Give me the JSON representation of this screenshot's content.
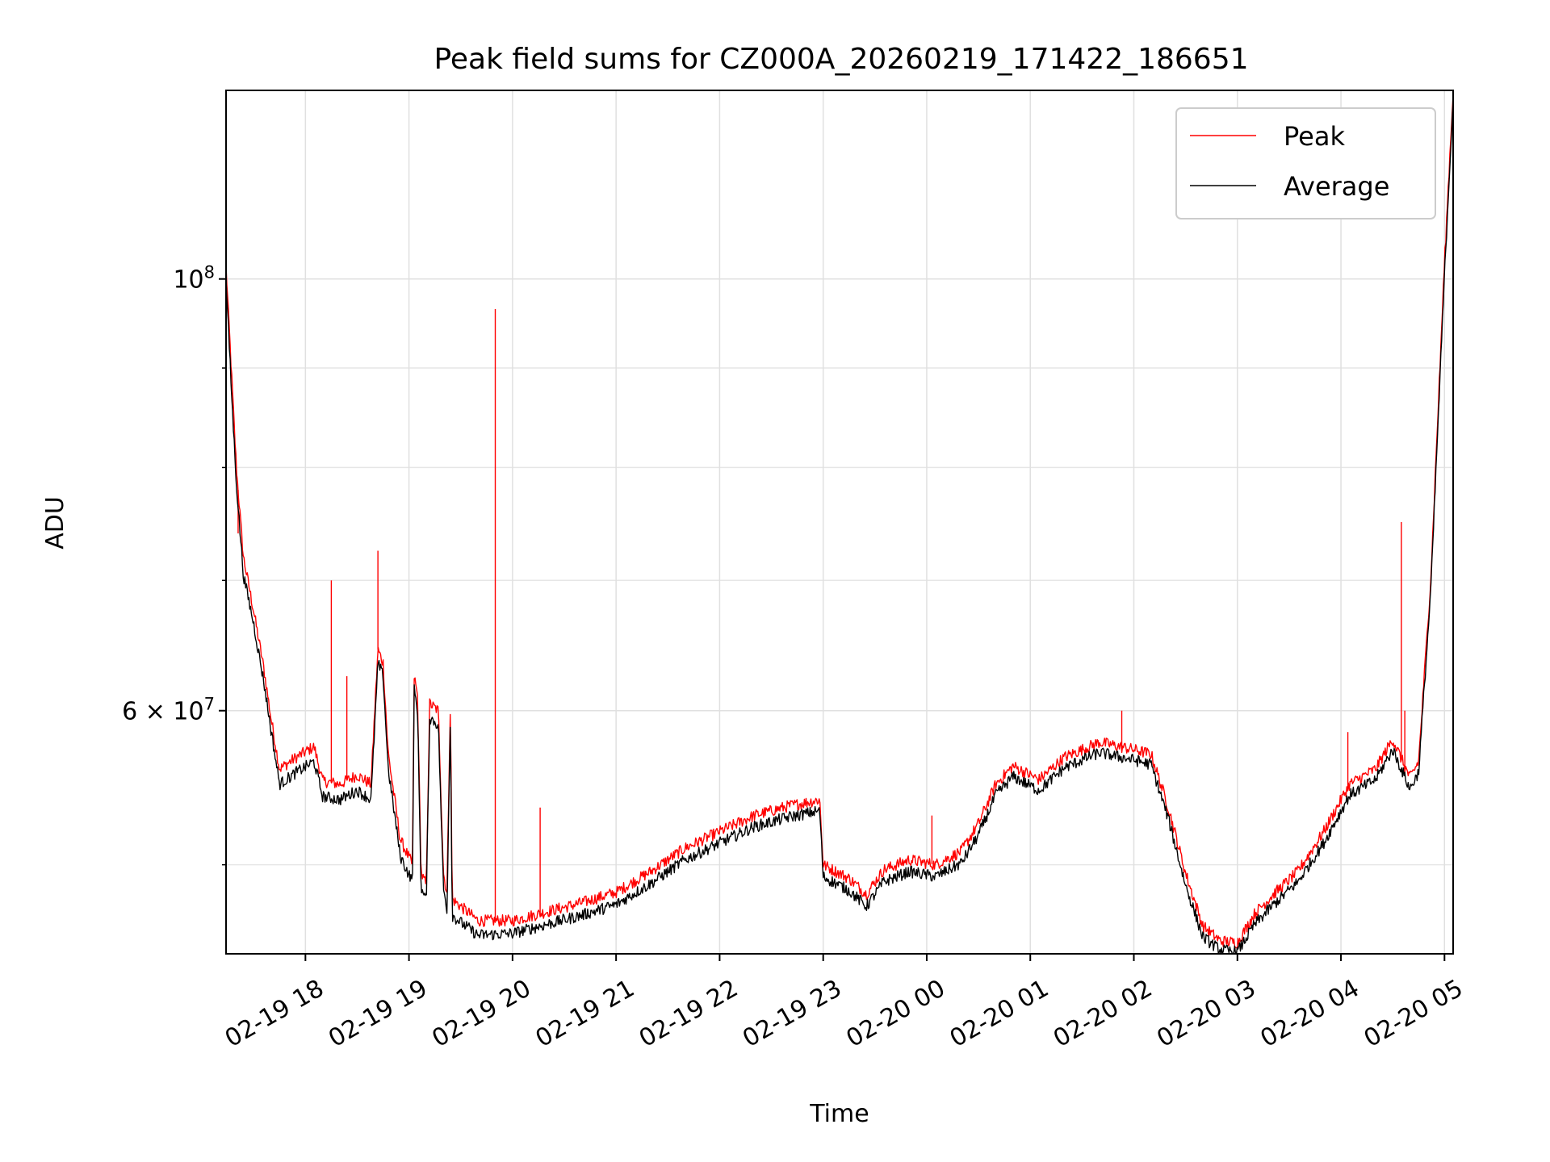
{
  "chart_data": {
    "type": "line",
    "title": "Peak field sums for CZ000A_20260219_171422_186651",
    "xlabel": "Time",
    "ylabel": "ADU",
    "y_scale": "log",
    "ylim": [
      45000000,
      125000000
    ],
    "xlim": [
      "2026-02-19 17:14",
      "2026-02-20 05:05"
    ],
    "grid": true,
    "legend_position": "upper right",
    "x_ticks": [
      {
        "t": "2026-02-19 18:00",
        "label": "02-19 18"
      },
      {
        "t": "2026-02-19 19:00",
        "label": "02-19 19"
      },
      {
        "t": "2026-02-19 20:00",
        "label": "02-19 20"
      },
      {
        "t": "2026-02-19 21:00",
        "label": "02-19 21"
      },
      {
        "t": "2026-02-19 22:00",
        "label": "02-19 22"
      },
      {
        "t": "2026-02-19 23:00",
        "label": "02-19 23"
      },
      {
        "t": "2026-02-20 00:00",
        "label": "02-20 00"
      },
      {
        "t": "2026-02-20 01:00",
        "label": "02-20 01"
      },
      {
        "t": "2026-02-20 02:00",
        "label": "02-20 02"
      },
      {
        "t": "2026-02-20 03:00",
        "label": "02-20 03"
      },
      {
        "t": "2026-02-20 04:00",
        "label": "02-20 04"
      },
      {
        "t": "2026-02-20 05:00",
        "label": "02-20 05"
      }
    ],
    "y_major_ticks": [
      {
        "value": 60000000,
        "label_base": "6 × 10",
        "label_exp": "7"
      },
      {
        "value": 100000000,
        "label_base": "10",
        "label_exp": "8"
      }
    ],
    "y_minor_gridlines": [
      50000000,
      70000000,
      80000000,
      90000000
    ],
    "series": [
      {
        "name": "Peak",
        "color": "#ff0000",
        "points": [
          [
            "2026-02-19 17:14",
            101500000
          ],
          [
            "2026-02-19 17:17",
            90000000
          ],
          [
            "2026-02-19 17:20",
            80000000
          ],
          [
            "2026-02-19 17:24",
            72000000
          ],
          [
            "2026-02-19 17:30",
            67500000
          ],
          [
            "2026-02-19 17:36",
            63000000
          ],
          [
            "2026-02-19 17:40",
            59500000
          ],
          [
            "2026-02-19 17:45",
            56000000
          ],
          [
            "2026-02-19 17:55",
            56800000
          ],
          [
            "2026-02-19 18:05",
            57500000
          ],
          [
            "2026-02-19 18:10",
            55200000
          ],
          [
            "2026-02-19 18:20",
            55000000
          ],
          [
            "2026-02-19 18:30",
            55600000
          ],
          [
            "2026-02-19 18:38",
            55000000
          ],
          [
            "2026-02-19 18:42",
            64500000
          ],
          [
            "2026-02-19 18:45",
            63500000
          ],
          [
            "2026-02-19 18:48",
            57000000
          ],
          [
            "2026-02-19 18:55",
            51500000
          ],
          [
            "2026-02-19 19:02",
            50000000
          ],
          [
            "2026-02-19 19:03",
            62500000
          ],
          [
            "2026-02-19 19:05",
            61000000
          ],
          [
            "2026-02-19 19:07",
            49500000
          ],
          [
            "2026-02-19 19:10",
            48800000
          ],
          [
            "2026-02-19 19:12",
            60500000
          ],
          [
            "2026-02-19 19:17",
            60000000
          ],
          [
            "2026-02-19 19:20",
            49500000
          ],
          [
            "2026-02-19 19:22",
            48300000
          ],
          [
            "2026-02-19 19:24",
            60800000
          ],
          [
            "2026-02-19 19:25",
            48000000
          ],
          [
            "2026-02-19 19:30",
            47600000
          ],
          [
            "2026-02-19 19:40",
            46800000
          ],
          [
            "2026-02-19 20:00",
            46800000
          ],
          [
            "2026-02-19 20:20",
            47300000
          ],
          [
            "2026-02-19 20:40",
            47800000
          ],
          [
            "2026-02-19 21:00",
            48400000
          ],
          [
            "2026-02-19 21:20",
            49600000
          ],
          [
            "2026-02-19 21:40",
            51000000
          ],
          [
            "2026-02-19 22:00",
            52000000
          ],
          [
            "2026-02-19 22:20",
            53000000
          ],
          [
            "2026-02-19 22:40",
            53600000
          ],
          [
            "2026-02-19 22:58",
            54000000
          ],
          [
            "2026-02-19 23:00",
            50000000
          ],
          [
            "2026-02-19 23:15",
            49200000
          ],
          [
            "2026-02-19 23:25",
            48300000
          ],
          [
            "2026-02-19 23:35",
            49700000
          ],
          [
            "2026-02-19 23:50",
            50300000
          ],
          [
            "2026-02-20 00:05",
            50000000
          ],
          [
            "2026-02-20 00:20",
            50800000
          ],
          [
            "2026-02-20 00:30",
            52500000
          ],
          [
            "2026-02-20 00:40",
            55000000
          ],
          [
            "2026-02-20 00:50",
            56200000
          ],
          [
            "2026-02-20 01:05",
            55300000
          ],
          [
            "2026-02-20 01:20",
            56800000
          ],
          [
            "2026-02-20 01:40",
            57800000
          ],
          [
            "2026-02-20 02:00",
            57300000
          ],
          [
            "2026-02-20 02:10",
            57000000
          ],
          [
            "2026-02-20 02:20",
            53500000
          ],
          [
            "2026-02-20 02:30",
            49500000
          ],
          [
            "2026-02-20 02:40",
            46500000
          ],
          [
            "2026-02-20 02:50",
            45700000
          ],
          [
            "2026-02-20 03:00",
            45600000
          ],
          [
            "2026-02-20 03:10",
            47200000
          ],
          [
            "2026-02-20 03:20",
            48200000
          ],
          [
            "2026-02-20 03:35",
            49600000
          ],
          [
            "2026-02-20 03:50",
            52000000
          ],
          [
            "2026-02-20 04:05",
            55000000
          ],
          [
            "2026-02-20 04:20",
            56000000
          ],
          [
            "2026-02-20 04:30",
            58000000
          ],
          [
            "2026-02-20 04:40",
            55400000
          ],
          [
            "2026-02-20 04:45",
            56500000
          ],
          [
            "2026-02-20 04:52",
            70000000
          ],
          [
            "2026-02-20 05:00",
            102000000
          ],
          [
            "2026-02-20 05:05",
            125000000
          ]
        ],
        "spikes": [
          [
            "2026-02-19 17:21",
            74000000
          ],
          [
            "2026-02-19 18:15",
            70000000
          ],
          [
            "2026-02-19 18:24",
            62500000
          ],
          [
            "2026-02-19 18:42",
            72500000
          ],
          [
            "2026-02-19 19:50",
            96500000
          ],
          [
            "2026-02-19 20:16",
            53500000
          ],
          [
            "2026-02-20 00:03",
            53000000
          ],
          [
            "2026-02-20 01:53",
            60000000
          ],
          [
            "2026-02-20 04:04",
            58500000
          ],
          [
            "2026-02-20 04:35",
            75000000
          ],
          [
            "2026-02-20 04:37",
            60000000
          ]
        ]
      },
      {
        "name": "Average",
        "color": "#000000",
        "points": [
          [
            "2026-02-19 17:14",
            100000000
          ],
          [
            "2026-02-19 17:17",
            88000000
          ],
          [
            "2026-02-19 17:20",
            78500000
          ],
          [
            "2026-02-19 17:24",
            70500000
          ],
          [
            "2026-02-19 17:30",
            66500000
          ],
          [
            "2026-02-19 17:36",
            62000000
          ],
          [
            "2026-02-19 17:40",
            58700000
          ],
          [
            "2026-02-19 17:45",
            55000000
          ],
          [
            "2026-02-19 17:55",
            55800000
          ],
          [
            "2026-02-19 18:05",
            56500000
          ],
          [
            "2026-02-19 18:10",
            54200000
          ],
          [
            "2026-02-19 18:20",
            54000000
          ],
          [
            "2026-02-19 18:30",
            54600000
          ],
          [
            "2026-02-19 18:38",
            54000000
          ],
          [
            "2026-02-19 18:42",
            63500000
          ],
          [
            "2026-02-19 18:45",
            62500000
          ],
          [
            "2026-02-19 18:48",
            56000000
          ],
          [
            "2026-02-19 18:55",
            50500000
          ],
          [
            "2026-02-19 19:02",
            49000000
          ],
          [
            "2026-02-19 19:03",
            61500000
          ],
          [
            "2026-02-19 19:05",
            60000000
          ],
          [
            "2026-02-19 19:07",
            48600000
          ],
          [
            "2026-02-19 19:10",
            47900000
          ],
          [
            "2026-02-19 19:12",
            59500000
          ],
          [
            "2026-02-19 19:17",
            59000000
          ],
          [
            "2026-02-19 19:20",
            48600000
          ],
          [
            "2026-02-19 19:22",
            47400000
          ],
          [
            "2026-02-19 19:24",
            59800000
          ],
          [
            "2026-02-19 19:25",
            47100000
          ],
          [
            "2026-02-19 19:30",
            46700000
          ],
          [
            "2026-02-19 19:40",
            46000000
          ],
          [
            "2026-02-19 20:00",
            46100000
          ],
          [
            "2026-02-19 20:20",
            46600000
          ],
          [
            "2026-02-19 20:40",
            47100000
          ],
          [
            "2026-02-19 21:00",
            47700000
          ],
          [
            "2026-02-19 21:20",
            48900000
          ],
          [
            "2026-02-19 21:40",
            50300000
          ],
          [
            "2026-02-19 22:00",
            51300000
          ],
          [
            "2026-02-19 22:20",
            52300000
          ],
          [
            "2026-02-19 22:40",
            52900000
          ],
          [
            "2026-02-19 22:58",
            53300000
          ],
          [
            "2026-02-19 23:00",
            49300000
          ],
          [
            "2026-02-19 23:15",
            48500000
          ],
          [
            "2026-02-19 23:25",
            47600000
          ],
          [
            "2026-02-19 23:35",
            49000000
          ],
          [
            "2026-02-19 23:50",
            49600000
          ],
          [
            "2026-02-20 00:05",
            49300000
          ],
          [
            "2026-02-20 00:20",
            50100000
          ],
          [
            "2026-02-20 00:30",
            51800000
          ],
          [
            "2026-02-20 00:40",
            54300000
          ],
          [
            "2026-02-20 00:50",
            55500000
          ],
          [
            "2026-02-20 01:05",
            54600000
          ],
          [
            "2026-02-20 01:20",
            56100000
          ],
          [
            "2026-02-20 01:40",
            57100000
          ],
          [
            "2026-02-20 02:00",
            56600000
          ],
          [
            "2026-02-20 02:10",
            56300000
          ],
          [
            "2026-02-20 02:20",
            52800000
          ],
          [
            "2026-02-20 02:30",
            48800000
          ],
          [
            "2026-02-20 02:40",
            45900000
          ],
          [
            "2026-02-20 02:50",
            45200000
          ],
          [
            "2026-02-20 03:00",
            45100000
          ],
          [
            "2026-02-20 03:10",
            46600000
          ],
          [
            "2026-02-20 03:20",
            47600000
          ],
          [
            "2026-02-20 03:35",
            49000000
          ],
          [
            "2026-02-20 03:50",
            51300000
          ],
          [
            "2026-02-20 04:05",
            54300000
          ],
          [
            "2026-02-20 04:20",
            55300000
          ],
          [
            "2026-02-20 04:30",
            57300000
          ],
          [
            "2026-02-20 04:40",
            54700000
          ],
          [
            "2026-02-20 04:45",
            55800000
          ],
          [
            "2026-02-20 04:52",
            69000000
          ],
          [
            "2026-02-20 05:00",
            100500000
          ],
          [
            "2026-02-20 05:05",
            124000000
          ]
        ]
      }
    ]
  }
}
